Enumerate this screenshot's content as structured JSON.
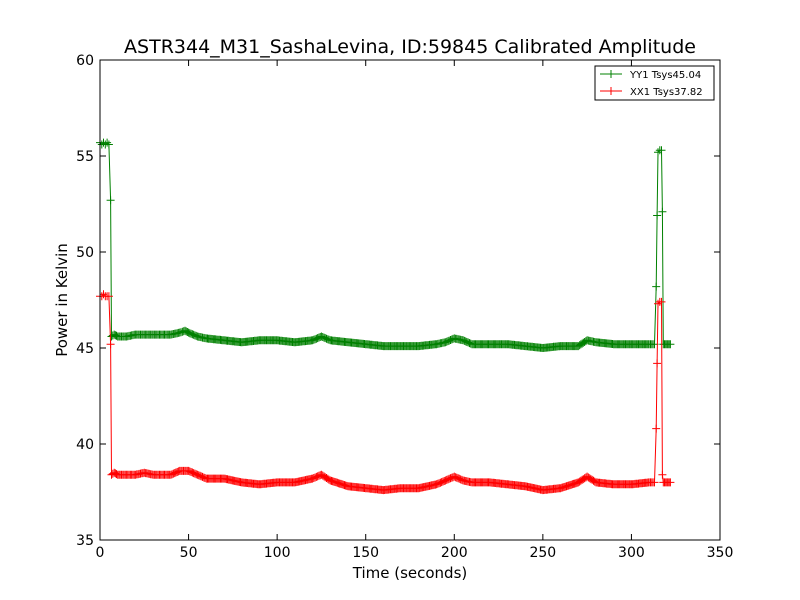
{
  "chart_data": {
    "type": "line",
    "title": "ASTR344_M31_SashaLevina, ID:59845 Calibrated Amplitude",
    "xlabel": "Time (seconds)",
    "ylabel": "Power in Kelvin",
    "xlim": [
      0,
      350
    ],
    "ylim": [
      35,
      60
    ],
    "xticks": [
      0,
      50,
      100,
      150,
      200,
      250,
      300,
      350
    ],
    "yticks": [
      35,
      40,
      45,
      50,
      55,
      60
    ],
    "grid": false,
    "legend_position": "top-right",
    "marker": "plus",
    "series": [
      {
        "name": "YY1 Tsys45.04",
        "color": "#008000",
        "points": [
          [
            0,
            55.7
          ],
          [
            1,
            55.6
          ],
          [
            2,
            55.7
          ],
          [
            3,
            55.6
          ],
          [
            4,
            55.7
          ],
          [
            5,
            55.6
          ],
          [
            6,
            52.7
          ],
          [
            6.5,
            45.6
          ],
          [
            8,
            45.7
          ],
          [
            10,
            45.6
          ],
          [
            15,
            45.6
          ],
          [
            20,
            45.7
          ],
          [
            25,
            45.7
          ],
          [
            30,
            45.7
          ],
          [
            35,
            45.7
          ],
          [
            40,
            45.7
          ],
          [
            45,
            45.8
          ],
          [
            48,
            45.9
          ],
          [
            50,
            45.8
          ],
          [
            55,
            45.6
          ],
          [
            60,
            45.5
          ],
          [
            70,
            45.4
          ],
          [
            80,
            45.3
          ],
          [
            90,
            45.4
          ],
          [
            100,
            45.4
          ],
          [
            110,
            45.3
          ],
          [
            120,
            45.4
          ],
          [
            125,
            45.6
          ],
          [
            130,
            45.4
          ],
          [
            140,
            45.3
          ],
          [
            150,
            45.2
          ],
          [
            160,
            45.1
          ],
          [
            170,
            45.1
          ],
          [
            180,
            45.1
          ],
          [
            190,
            45.2
          ],
          [
            195,
            45.3
          ],
          [
            200,
            45.5
          ],
          [
            205,
            45.4
          ],
          [
            210,
            45.2
          ],
          [
            220,
            45.2
          ],
          [
            230,
            45.2
          ],
          [
            240,
            45.1
          ],
          [
            250,
            45.0
          ],
          [
            260,
            45.1
          ],
          [
            270,
            45.1
          ],
          [
            275,
            45.4
          ],
          [
            280,
            45.3
          ],
          [
            290,
            45.2
          ],
          [
            300,
            45.2
          ],
          [
            310,
            45.2
          ],
          [
            313,
            45.2
          ],
          [
            314,
            48.2
          ],
          [
            314.5,
            51.9
          ],
          [
            315,
            55.2
          ],
          [
            316,
            55.3
          ],
          [
            317,
            55.3
          ],
          [
            317.5,
            52.1
          ],
          [
            318,
            45.2
          ],
          [
            320,
            45.2
          ],
          [
            322,
            45.2
          ]
        ]
      },
      {
        "name": "XX1 Tsys37.82",
        "color": "#ff0000",
        "points": [
          [
            0,
            47.7
          ],
          [
            1,
            47.7
          ],
          [
            2,
            47.8
          ],
          [
            3,
            47.7
          ],
          [
            4,
            47.7
          ],
          [
            5,
            47.7
          ],
          [
            6,
            45.2
          ],
          [
            6.5,
            38.4
          ],
          [
            8,
            38.5
          ],
          [
            10,
            38.4
          ],
          [
            15,
            38.4
          ],
          [
            20,
            38.4
          ],
          [
            25,
            38.5
          ],
          [
            30,
            38.4
          ],
          [
            35,
            38.4
          ],
          [
            40,
            38.4
          ],
          [
            45,
            38.6
          ],
          [
            50,
            38.6
          ],
          [
            55,
            38.4
          ],
          [
            60,
            38.2
          ],
          [
            70,
            38.2
          ],
          [
            80,
            38.0
          ],
          [
            90,
            37.9
          ],
          [
            100,
            38.0
          ],
          [
            110,
            38.0
          ],
          [
            120,
            38.2
          ],
          [
            125,
            38.4
          ],
          [
            130,
            38.1
          ],
          [
            140,
            37.8
          ],
          [
            150,
            37.7
          ],
          [
            160,
            37.6
          ],
          [
            170,
            37.7
          ],
          [
            180,
            37.7
          ],
          [
            190,
            37.9
          ],
          [
            195,
            38.1
          ],
          [
            200,
            38.3
          ],
          [
            205,
            38.1
          ],
          [
            210,
            38.0
          ],
          [
            220,
            38.0
          ],
          [
            230,
            37.9
          ],
          [
            240,
            37.8
          ],
          [
            250,
            37.6
          ],
          [
            260,
            37.7
          ],
          [
            270,
            38.0
          ],
          [
            275,
            38.3
          ],
          [
            280,
            38.0
          ],
          [
            290,
            37.9
          ],
          [
            300,
            37.9
          ],
          [
            310,
            38.0
          ],
          [
            313,
            38.0
          ],
          [
            314,
            40.8
          ],
          [
            314.5,
            44.2
          ],
          [
            315,
            47.3
          ],
          [
            316,
            47.4
          ],
          [
            317,
            47.4
          ],
          [
            317.5,
            38.4
          ],
          [
            318,
            38.0
          ],
          [
            320,
            38.0
          ],
          [
            322,
            38.0
          ]
        ]
      }
    ]
  }
}
